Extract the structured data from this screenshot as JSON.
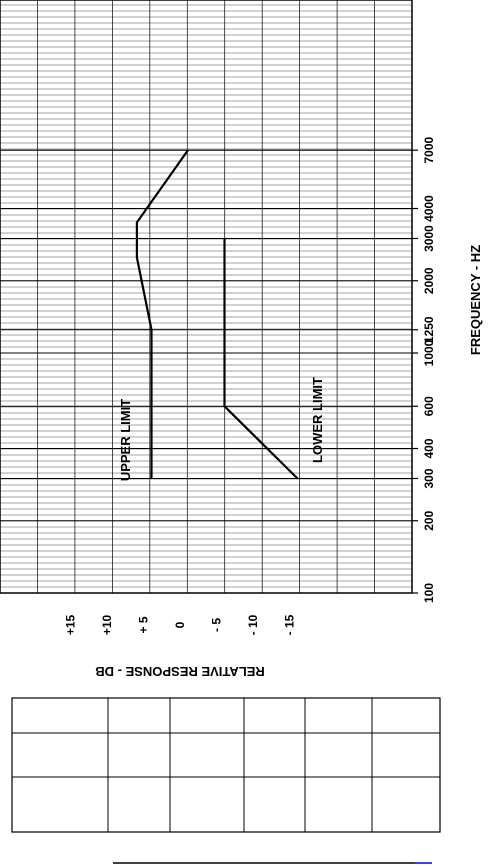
{
  "chart_data": {
    "type": "line",
    "orientation": "rotated-90-clockwise",
    "x_scale": "log",
    "xlabel": "FREQUENCY - HZ",
    "ylabel": "RELATIVE RESPONSE - DB",
    "xlim": [
      100,
      10000
    ],
    "ylim": [
      -20,
      20
    ],
    "x_ticks": [
      {
        "value": 100,
        "label": "100"
      },
      {
        "value": 200,
        "label": "200"
      },
      {
        "value": 300,
        "label": "300"
      },
      {
        "value": 400,
        "label": "400"
      },
      {
        "value": 600,
        "label": "600"
      },
      {
        "value": 1000,
        "label": "1000"
      },
      {
        "value": 1250,
        "label": "1250"
      },
      {
        "value": 2000,
        "label": "2000"
      },
      {
        "value": 3000,
        "label": "3000"
      },
      {
        "value": 4000,
        "label": "4000"
      },
      {
        "value": 7000,
        "label": "7000"
      }
    ],
    "y_ticks": [
      {
        "value": 15,
        "label": "+15"
      },
      {
        "value": 10,
        "label": "+10"
      },
      {
        "value": 5,
        "label": "+ 5"
      },
      {
        "value": 0,
        "label": "0"
      },
      {
        "value": -5,
        "label": "- 5"
      },
      {
        "value": -10,
        "label": "- 10"
      },
      {
        "value": -15,
        "label": "- 15"
      }
    ],
    "grid": true,
    "series": [
      {
        "name": "UPPER LIMIT",
        "x": [
          300,
          1250,
          2500,
          3500,
          7000
        ],
        "y": [
          5,
          5,
          7,
          7,
          0
        ]
      },
      {
        "name": "LOWER LIMIT",
        "x": [
          300,
          600,
          3000
        ],
        "y": [
          -15,
          -5,
          -5
        ]
      }
    ]
  },
  "table": {
    "rows": 3,
    "cols": 6,
    "cells": []
  }
}
